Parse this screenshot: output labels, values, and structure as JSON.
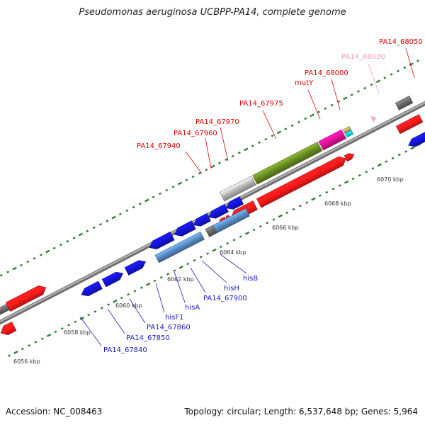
{
  "title": "Pseudomonas aeruginosa UCBPP-PA14, complete genome",
  "footer": {
    "accession": "Accession: NC_008463",
    "topology": "Topology: circular; Length: 6,537,648 bp; Genes: 5,964"
  },
  "colors": {
    "backbone": "#8a8a8a",
    "red": "#ff1a1a",
    "blue": "#1515e0",
    "steel": "#5a8ec6",
    "olive": "#6b8e23",
    "grey": "#bdbdbd",
    "dark_grey": "#6d6d6d",
    "magenta": "#e6129a",
    "cyan": "#00e5f0",
    "tan": "#c9a86a",
    "pink_label": "#f29bc0",
    "label_red": "#dd0000",
    "label_blue": "#1c1cb8",
    "tick": "#2e7d32"
  },
  "scale_labels": [
    "6056 kbp",
    "6058 kbp",
    "6060 kbp",
    "6062 kbp",
    "6064 kbp",
    "6066 kbp",
    "6068 kbp",
    "6070 kbp"
  ],
  "gene_labels": [
    {
      "text": "PA14_67940",
      "color": "red"
    },
    {
      "text": "PA14_67960",
      "color": "red"
    },
    {
      "text": "PA14_67970",
      "color": "red"
    },
    {
      "text": "PA14_67975",
      "color": "red"
    },
    {
      "text": "mutY",
      "color": "red"
    },
    {
      "text": "PA14_68000",
      "color": "red"
    },
    {
      "text": "PA14_68030",
      "color": "pink"
    },
    {
      "text": "PA14_68050",
      "color": "red"
    },
    {
      "text": "PA14_67840",
      "color": "blue"
    },
    {
      "text": "PA14_67850",
      "color": "blue"
    },
    {
      "text": "PA14_67860",
      "color": "blue"
    },
    {
      "text": "hisF1",
      "color": "blue"
    },
    {
      "text": "hisA",
      "color": "blue"
    },
    {
      "text": "PA14_67900",
      "color": "blue"
    },
    {
      "text": "hisH",
      "color": "blue"
    },
    {
      "text": "hisB",
      "color": "blue"
    }
  ]
}
